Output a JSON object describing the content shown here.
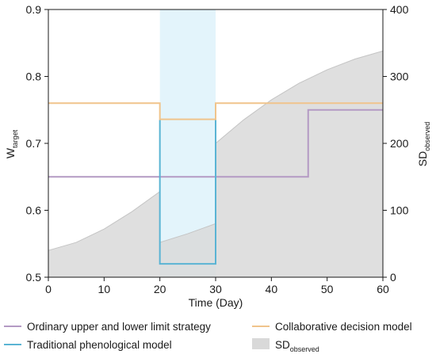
{
  "chart_data": {
    "type": "line",
    "x_axis": {
      "label": "Time (Day)",
      "range": [
        0,
        60
      ],
      "ticks": [
        0,
        10,
        20,
        30,
        40,
        50,
        60
      ]
    },
    "y_left": {
      "label_main": "W",
      "label_sub": "target",
      "range": [
        0.5,
        0.9
      ],
      "ticks": [
        0.5,
        0.6,
        0.7,
        0.8,
        0.9
      ],
      "tick_labels": [
        "0.5",
        "0.6",
        "0.7",
        "0.8",
        "0.9"
      ]
    },
    "y_right": {
      "label_main": "SD",
      "label_sub": "observed",
      "range": [
        0,
        400
      ],
      "ticks": [
        0,
        100,
        200,
        300,
        400
      ]
    },
    "highlight_band": {
      "x_start": 20,
      "x_end": 30,
      "color": "#e3f4fb"
    },
    "grid": false,
    "legend_position": "bottom",
    "series": [
      {
        "id": "sd",
        "name_main": "SD",
        "name_sub": "observed",
        "kind": "area",
        "axis": "right",
        "color": "#d9d9d9",
        "stroke": "#c4c4c4",
        "points": [
          [
            0,
            40
          ],
          [
            5,
            52
          ],
          [
            10,
            72
          ],
          [
            15,
            98
          ],
          [
            20,
            128
          ],
          [
            20,
            52
          ],
          [
            25,
            65
          ],
          [
            30,
            80
          ],
          [
            30,
            200
          ],
          [
            35,
            235
          ],
          [
            40,
            265
          ],
          [
            45,
            290
          ],
          [
            50,
            310
          ],
          [
            55,
            326
          ],
          [
            60,
            338
          ]
        ]
      },
      {
        "id": "ordinary",
        "name": "Ordinary upper and lower limit strategy",
        "kind": "line",
        "axis": "left",
        "color": "#b49ac4",
        "points": [
          [
            0,
            0.65
          ],
          [
            46.6,
            0.65
          ],
          [
            46.6,
            0.75
          ],
          [
            60,
            0.75
          ]
        ]
      },
      {
        "id": "traditional",
        "name": "Traditional phenological model",
        "kind": "line",
        "axis": "left",
        "color": "#5ab4d4",
        "points": [
          [
            20,
            0.735
          ],
          [
            20,
            0.52
          ],
          [
            30,
            0.52
          ],
          [
            30,
            0.735
          ]
        ]
      },
      {
        "id": "collaborative",
        "name": "Collaborative decision model",
        "kind": "line",
        "axis": "left",
        "color": "#f0c48c",
        "points": [
          [
            0,
            0.76
          ],
          [
            20,
            0.76
          ],
          [
            20,
            0.736
          ],
          [
            30,
            0.736
          ],
          [
            30,
            0.76
          ],
          [
            60,
            0.76
          ]
        ]
      }
    ],
    "legend_order": [
      "ordinary",
      "collaborative",
      "traditional",
      "sd"
    ]
  }
}
